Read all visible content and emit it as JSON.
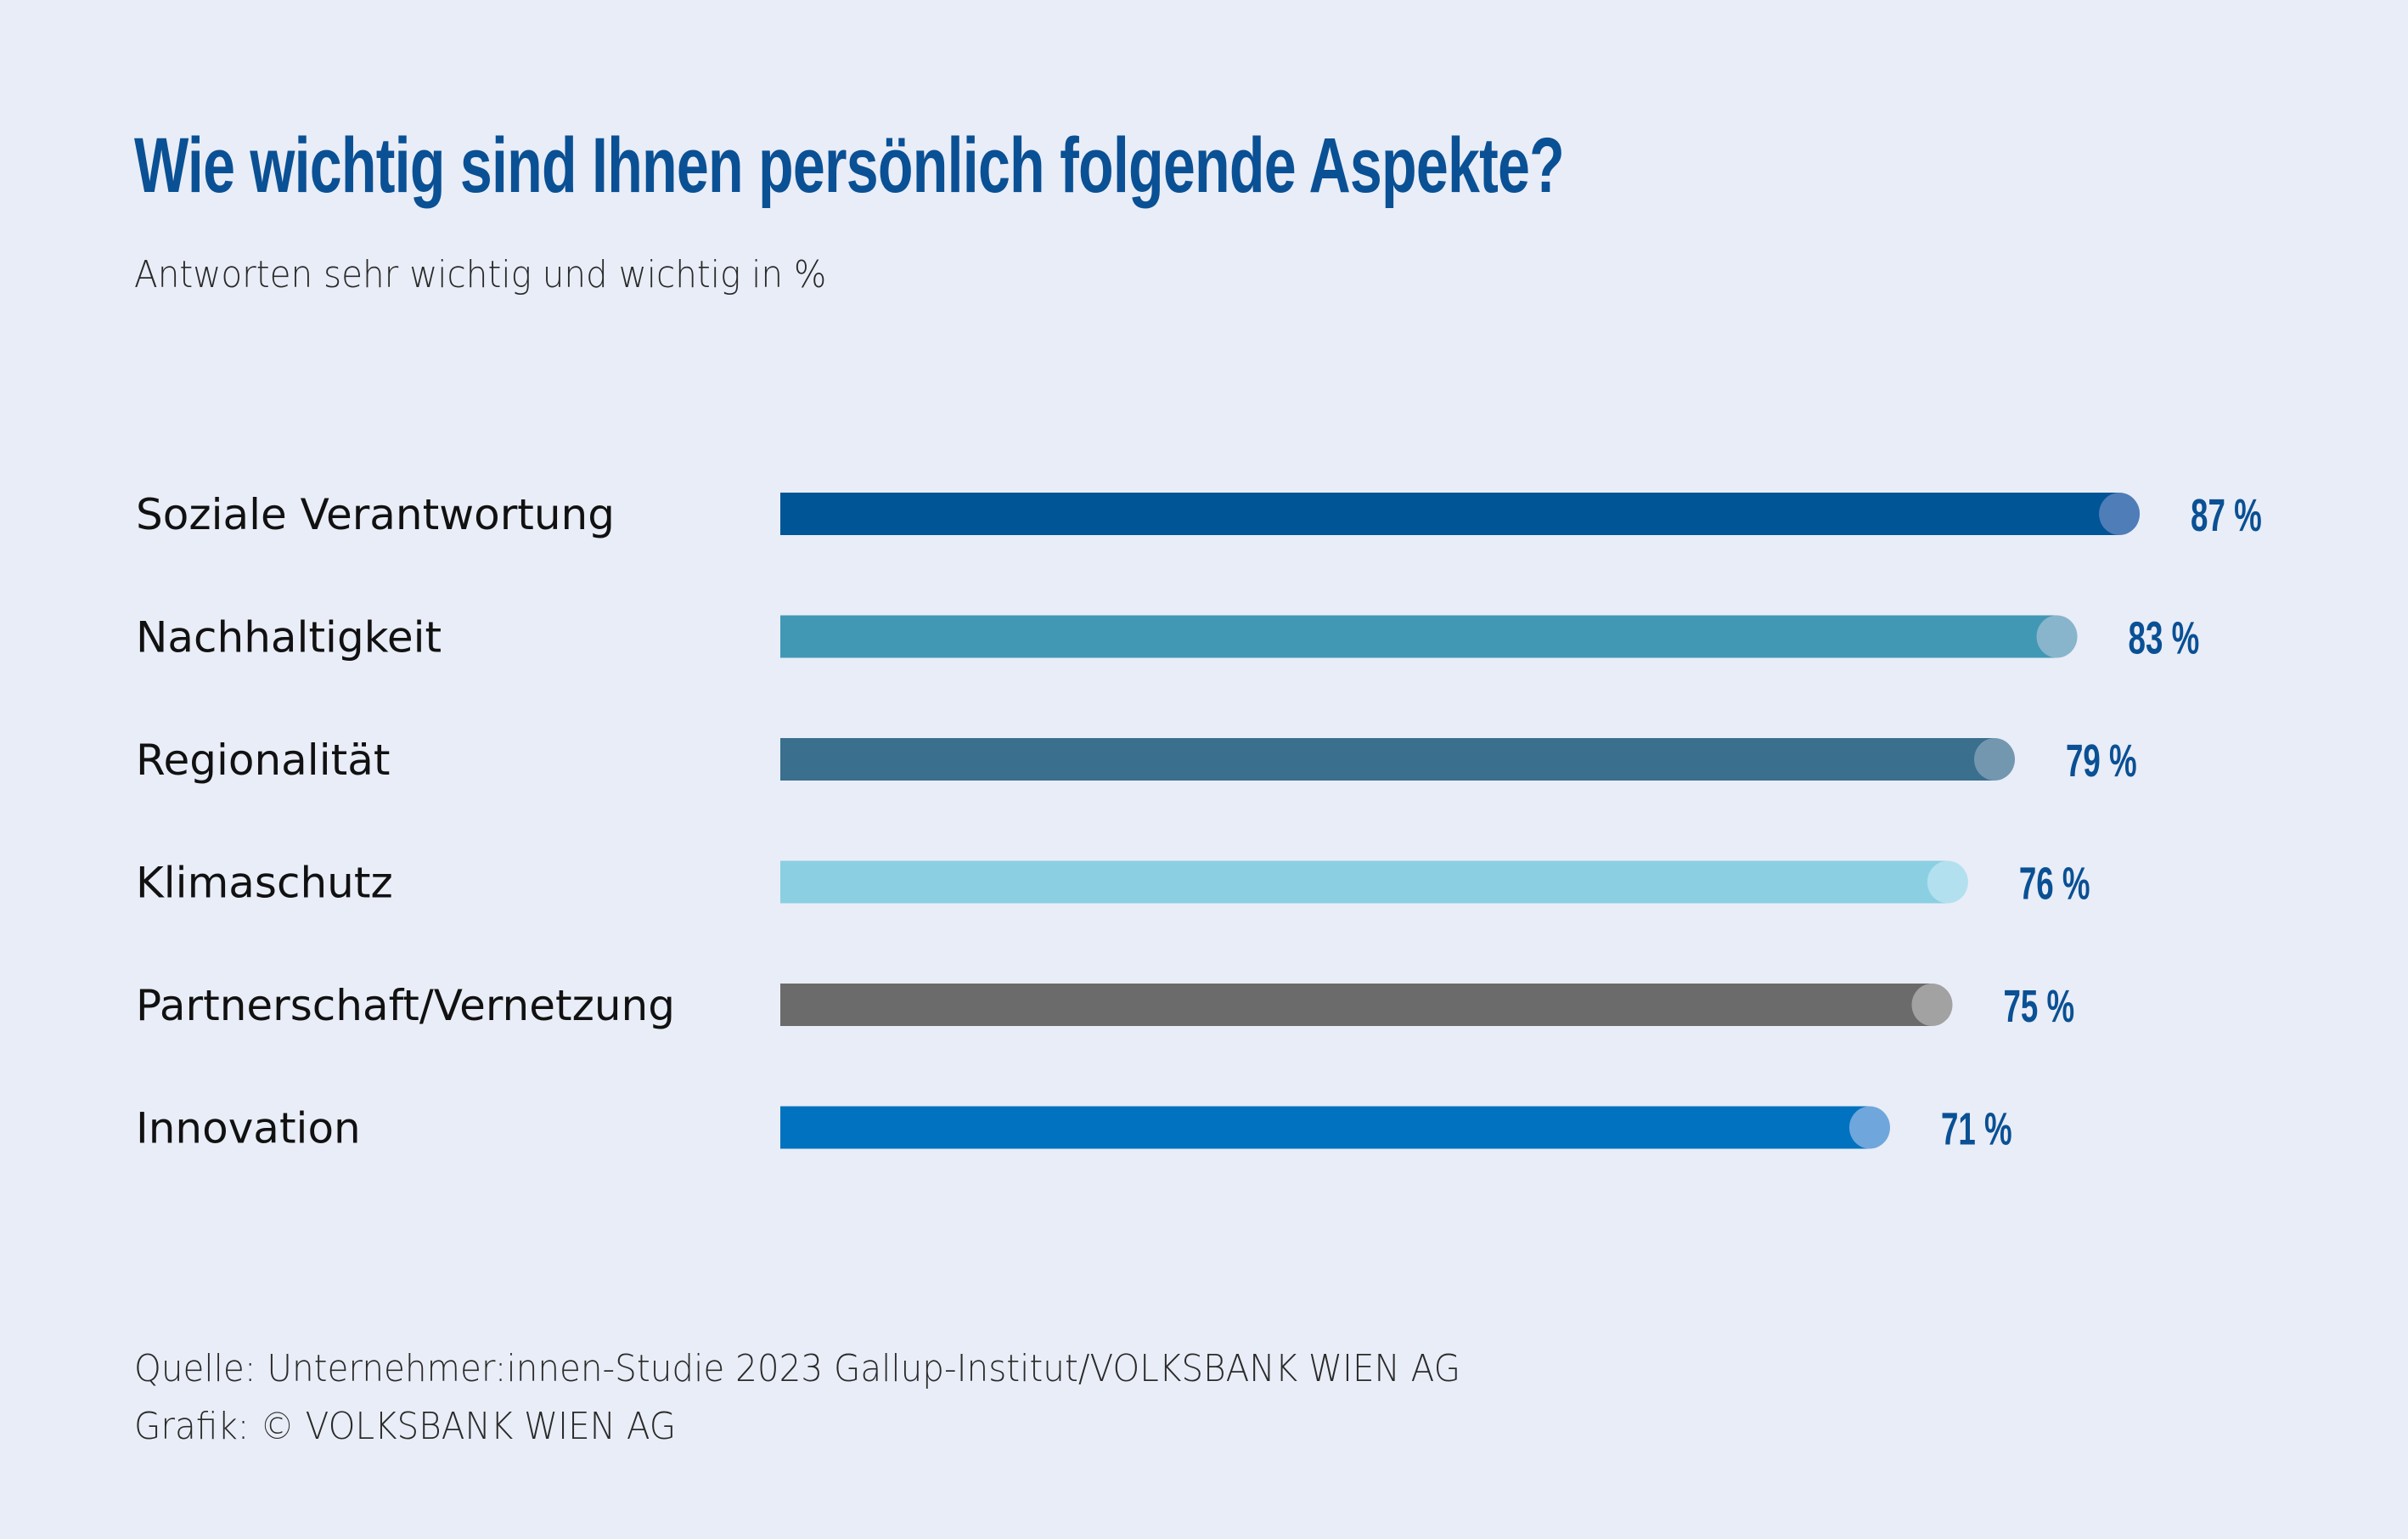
{
  "chart_data": {
    "type": "bar",
    "orientation": "horizontal",
    "title": "Wie wichtig sind Ihnen persönlich folgende Aspekte?",
    "subtitle": "Antworten sehr wichtig und wichtig in %",
    "categories": [
      "Soziale Verantwortung",
      "Nachhaltigkeit",
      "Regionalität",
      "Klimaschutz",
      "Partnerschaft/Vernetzung",
      "Innovation"
    ],
    "values": [
      87,
      83,
      79,
      76,
      75,
      71
    ],
    "value_labels": [
      "87 %",
      "83 %",
      "79 %",
      "76 %",
      "75 %",
      "71 %"
    ],
    "unit": "%",
    "colors": [
      "#005597",
      "#4198b5",
      "#3a6f8e",
      "#8bcfe3",
      "#6b6b6b",
      "#0072bf"
    ],
    "cap_colors": [
      "#4f7db8",
      "#88b5cb",
      "#7497b0",
      "#b3e0ee",
      "#a2a2a2",
      "#6fa6dc"
    ],
    "xlabel": "",
    "ylabel": "",
    "xlim": [
      0,
      100
    ],
    "grid": false,
    "legend": "none"
  },
  "footer": {
    "source": "Quelle: Unternehmer:innen-Studie 2023 Gallup-Institut/VOLKSBANK WIEN AG",
    "credit": "Grafik: © VOLKSBANK WIEN AG"
  },
  "colors": {
    "background": "#e9edf7",
    "title": "#0a5094",
    "value_label": "#0a5094"
  }
}
